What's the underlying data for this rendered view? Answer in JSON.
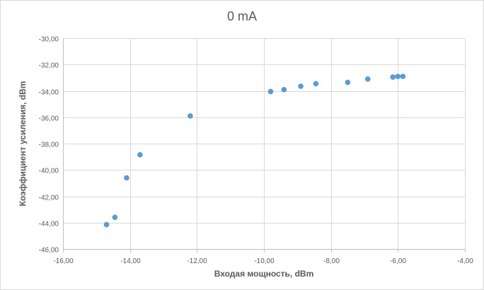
{
  "chart_data": {
    "type": "scatter",
    "title": "0 mA",
    "xlabel": "Входая мощность, dBm",
    "ylabel": "Коэффициент усиления, dBm",
    "xlim": [
      -16,
      -4
    ],
    "ylim": [
      -46,
      -30
    ],
    "x_ticks": [
      "-16,00",
      "-14,00",
      "-12,00",
      "-10,00",
      "-8,00",
      "-6,00",
      "-4,00"
    ],
    "y_ticks": [
      "-30,00",
      "-32,00",
      "-34,00",
      "-36,00",
      "-38,00",
      "-40,00",
      "-42,00",
      "-44,00",
      "-46,00"
    ],
    "grid": "horizontal",
    "legend": "none",
    "marker_color": "#5b9bd5",
    "points": [
      {
        "x": -14.7,
        "y": -44.15
      },
      {
        "x": -14.45,
        "y": -43.6
      },
      {
        "x": -14.1,
        "y": -40.6
      },
      {
        "x": -13.7,
        "y": -38.85
      },
      {
        "x": -12.2,
        "y": -35.9
      },
      {
        "x": -9.8,
        "y": -34.05
      },
      {
        "x": -9.4,
        "y": -33.9
      },
      {
        "x": -8.9,
        "y": -33.65
      },
      {
        "x": -8.45,
        "y": -33.45
      },
      {
        "x": -7.5,
        "y": -33.35
      },
      {
        "x": -6.9,
        "y": -33.1
      },
      {
        "x": -6.15,
        "y": -32.95
      },
      {
        "x": -6.0,
        "y": -32.9
      },
      {
        "x": -5.85,
        "y": -32.9
      }
    ]
  }
}
